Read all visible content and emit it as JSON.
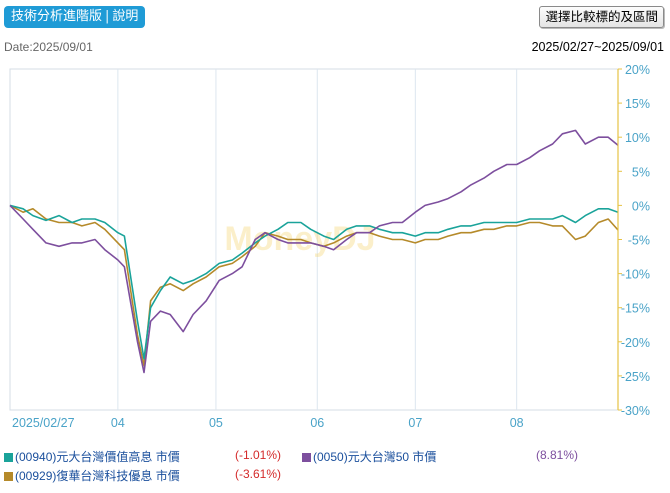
{
  "toolbar": {
    "tab_label": "技術分析進階版",
    "separator": "|",
    "help_label": "說明",
    "select_button": "選擇比較標的及區間"
  },
  "date_label": "Date:2025/09/01",
  "range_label": "2025/02/27~2025/09/01",
  "watermark": "MoneyDJ",
  "colors": {
    "series_teal": "#1aa39a",
    "series_purple": "#7d4f9e",
    "series_gold": "#b58a2a",
    "right_axis": "#e7c345",
    "grid": "#dce6ef",
    "tick_text": "#4aa3c8"
  },
  "legend": [
    {
      "name": "(00940)元大台灣價值高息 市價",
      "value": "(-1.01%)",
      "value_color": "#d42a2a",
      "color": "#1aa39a"
    },
    {
      "name": "(0050)元大台灣50 市價",
      "value": "(8.81%)",
      "value_color": "#7d4f9e",
      "color": "#7d4f9e"
    },
    {
      "name": "(00929)復華台灣科技優息 市價",
      "value": "(-3.61%)",
      "value_color": "#d42a2a",
      "color": "#b58a2a"
    }
  ],
  "chart_data": {
    "type": "line",
    "ylim": [
      -30,
      20
    ],
    "yticks": [
      "20%",
      "15%",
      "10%",
      "5%",
      "0%",
      "-5%",
      "-10%",
      "-15%",
      "-20%",
      "-25%",
      "-30%"
    ],
    "ytick_values": [
      20,
      15,
      10,
      5,
      0,
      -5,
      -10,
      -15,
      -20,
      -25,
      -30
    ],
    "xlim": [
      "2025-02-27",
      "2025-09-01"
    ],
    "xticks": [
      {
        "label": "2025/02/27",
        "date": "2025-02-27"
      },
      {
        "label": "04",
        "date": "2025-04-01"
      },
      {
        "label": "05",
        "date": "2025-05-01"
      },
      {
        "label": "06",
        "date": "2025-06-01"
      },
      {
        "label": "07",
        "date": "2025-07-01"
      },
      {
        "label": "08",
        "date": "2025-08-01"
      }
    ],
    "grid": true,
    "series": [
      {
        "name": "(00940)元大台灣價值高息 市價",
        "points": [
          [
            "2025-02-27",
            0
          ],
          [
            "2025-03-03",
            -0.5
          ],
          [
            "2025-03-06",
            -1.5
          ],
          [
            "2025-03-10",
            -2.2
          ],
          [
            "2025-03-14",
            -1.5
          ],
          [
            "2025-03-18",
            -2.5
          ],
          [
            "2025-03-21",
            -2
          ],
          [
            "2025-03-25",
            -2
          ],
          [
            "2025-03-28",
            -2.5
          ],
          [
            "2025-04-01",
            -4
          ],
          [
            "2025-04-03",
            -4.5
          ],
          [
            "2025-04-07",
            -17
          ],
          [
            "2025-04-09",
            -22.5
          ],
          [
            "2025-04-11",
            -15
          ],
          [
            "2025-04-14",
            -12.5
          ],
          [
            "2025-04-17",
            -10.5
          ],
          [
            "2025-04-21",
            -11.5
          ],
          [
            "2025-04-24",
            -11
          ],
          [
            "2025-04-28",
            -10
          ],
          [
            "2025-05-02",
            -8.5
          ],
          [
            "2025-05-06",
            -8
          ],
          [
            "2025-05-09",
            -7
          ],
          [
            "2025-05-13",
            -5.5
          ],
          [
            "2025-05-16",
            -4.5
          ],
          [
            "2025-05-20",
            -3.5
          ],
          [
            "2025-05-23",
            -2.5
          ],
          [
            "2025-05-27",
            -2.5
          ],
          [
            "2025-05-30",
            -3.5
          ],
          [
            "2025-06-03",
            -4.5
          ],
          [
            "2025-06-06",
            -5
          ],
          [
            "2025-06-10",
            -3.5
          ],
          [
            "2025-06-13",
            -3
          ],
          [
            "2025-06-17",
            -3
          ],
          [
            "2025-06-20",
            -3.5
          ],
          [
            "2025-06-24",
            -4
          ],
          [
            "2025-06-27",
            -4
          ],
          [
            "2025-07-01",
            -4.5
          ],
          [
            "2025-07-04",
            -4
          ],
          [
            "2025-07-08",
            -4
          ],
          [
            "2025-07-11",
            -3.5
          ],
          [
            "2025-07-15",
            -3
          ],
          [
            "2025-07-18",
            -3
          ],
          [
            "2025-07-22",
            -2.5
          ],
          [
            "2025-07-25",
            -2.5
          ],
          [
            "2025-07-29",
            -2.5
          ],
          [
            "2025-08-01",
            -2.5
          ],
          [
            "2025-08-05",
            -2
          ],
          [
            "2025-08-08",
            -2
          ],
          [
            "2025-08-12",
            -2
          ],
          [
            "2025-08-15",
            -1.5
          ],
          [
            "2025-08-19",
            -2.5
          ],
          [
            "2025-08-22",
            -1.5
          ],
          [
            "2025-08-26",
            -0.5
          ],
          [
            "2025-08-29",
            -0.5
          ],
          [
            "2025-09-01",
            -1.01
          ]
        ]
      },
      {
        "name": "(0050)元大台灣50 市價",
        "points": [
          [
            "2025-02-27",
            0
          ],
          [
            "2025-03-03",
            -2
          ],
          [
            "2025-03-06",
            -3.5
          ],
          [
            "2025-03-10",
            -5.5
          ],
          [
            "2025-03-14",
            -6
          ],
          [
            "2025-03-18",
            -5.5
          ],
          [
            "2025-03-21",
            -5.5
          ],
          [
            "2025-03-25",
            -5
          ],
          [
            "2025-03-28",
            -6.5
          ],
          [
            "2025-04-01",
            -8
          ],
          [
            "2025-04-03",
            -9
          ],
          [
            "2025-04-07",
            -20
          ],
          [
            "2025-04-09",
            -24.5
          ],
          [
            "2025-04-11",
            -17
          ],
          [
            "2025-04-14",
            -15.5
          ],
          [
            "2025-04-17",
            -16
          ],
          [
            "2025-04-21",
            -18.5
          ],
          [
            "2025-04-24",
            -16
          ],
          [
            "2025-04-28",
            -14
          ],
          [
            "2025-05-02",
            -11
          ],
          [
            "2025-05-06",
            -10
          ],
          [
            "2025-05-09",
            -9
          ],
          [
            "2025-05-13",
            -5
          ],
          [
            "2025-05-16",
            -4
          ],
          [
            "2025-05-20",
            -5
          ],
          [
            "2025-05-23",
            -5.5
          ],
          [
            "2025-05-27",
            -5.5
          ],
          [
            "2025-05-30",
            -5.5
          ],
          [
            "2025-06-03",
            -6
          ],
          [
            "2025-06-06",
            -6.5
          ],
          [
            "2025-06-10",
            -5
          ],
          [
            "2025-06-13",
            -4
          ],
          [
            "2025-06-17",
            -4
          ],
          [
            "2025-06-20",
            -3
          ],
          [
            "2025-06-24",
            -2.5
          ],
          [
            "2025-06-27",
            -2.5
          ],
          [
            "2025-07-01",
            -1
          ],
          [
            "2025-07-04",
            0
          ],
          [
            "2025-07-08",
            0.5
          ],
          [
            "2025-07-11",
            1
          ],
          [
            "2025-07-15",
            2
          ],
          [
            "2025-07-18",
            3
          ],
          [
            "2025-07-22",
            4
          ],
          [
            "2025-07-25",
            5
          ],
          [
            "2025-07-29",
            6
          ],
          [
            "2025-08-01",
            6
          ],
          [
            "2025-08-05",
            7
          ],
          [
            "2025-08-08",
            8
          ],
          [
            "2025-08-12",
            9
          ],
          [
            "2025-08-15",
            10.5
          ],
          [
            "2025-08-19",
            11
          ],
          [
            "2025-08-22",
            9
          ],
          [
            "2025-08-26",
            10
          ],
          [
            "2025-08-29",
            10
          ],
          [
            "2025-09-01",
            8.81
          ]
        ]
      },
      {
        "name": "(00929)復華台灣科技優息 市價",
        "points": [
          [
            "2025-02-27",
            0
          ],
          [
            "2025-03-03",
            -1
          ],
          [
            "2025-03-06",
            -0.5
          ],
          [
            "2025-03-10",
            -2
          ],
          [
            "2025-03-14",
            -2.5
          ],
          [
            "2025-03-18",
            -2.5
          ],
          [
            "2025-03-21",
            -3
          ],
          [
            "2025-03-25",
            -2.5
          ],
          [
            "2025-03-28",
            -3.5
          ],
          [
            "2025-04-01",
            -5.5
          ],
          [
            "2025-04-03",
            -6.5
          ],
          [
            "2025-04-07",
            -19
          ],
          [
            "2025-04-09",
            -23.5
          ],
          [
            "2025-04-11",
            -14
          ],
          [
            "2025-04-14",
            -12
          ],
          [
            "2025-04-17",
            -11.5
          ],
          [
            "2025-04-21",
            -12.5
          ],
          [
            "2025-04-24",
            -11.5
          ],
          [
            "2025-04-28",
            -10.5
          ],
          [
            "2025-05-02",
            -9
          ],
          [
            "2025-05-06",
            -8.5
          ],
          [
            "2025-05-09",
            -7.5
          ],
          [
            "2025-05-13",
            -6
          ],
          [
            "2025-05-16",
            -4
          ],
          [
            "2025-05-20",
            -4.5
          ],
          [
            "2025-05-23",
            -5
          ],
          [
            "2025-05-27",
            -5
          ],
          [
            "2025-05-30",
            -5.5
          ],
          [
            "2025-06-03",
            -6
          ],
          [
            "2025-06-06",
            -5.5
          ],
          [
            "2025-06-10",
            -4.5
          ],
          [
            "2025-06-13",
            -4
          ],
          [
            "2025-06-17",
            -4
          ],
          [
            "2025-06-20",
            -4.5
          ],
          [
            "2025-06-24",
            -5
          ],
          [
            "2025-06-27",
            -5
          ],
          [
            "2025-07-01",
            -5.5
          ],
          [
            "2025-07-04",
            -5
          ],
          [
            "2025-07-08",
            -5
          ],
          [
            "2025-07-11",
            -4.5
          ],
          [
            "2025-07-15",
            -4
          ],
          [
            "2025-07-18",
            -4
          ],
          [
            "2025-07-22",
            -3.5
          ],
          [
            "2025-07-25",
            -3.5
          ],
          [
            "2025-07-29",
            -3
          ],
          [
            "2025-08-01",
            -3
          ],
          [
            "2025-08-05",
            -2.5
          ],
          [
            "2025-08-08",
            -2.5
          ],
          [
            "2025-08-12",
            -3
          ],
          [
            "2025-08-15",
            -3
          ],
          [
            "2025-08-19",
            -5
          ],
          [
            "2025-08-22",
            -4.5
          ],
          [
            "2025-08-26",
            -2.5
          ],
          [
            "2025-08-29",
            -2
          ],
          [
            "2025-09-01",
            -3.61
          ]
        ]
      }
    ]
  }
}
